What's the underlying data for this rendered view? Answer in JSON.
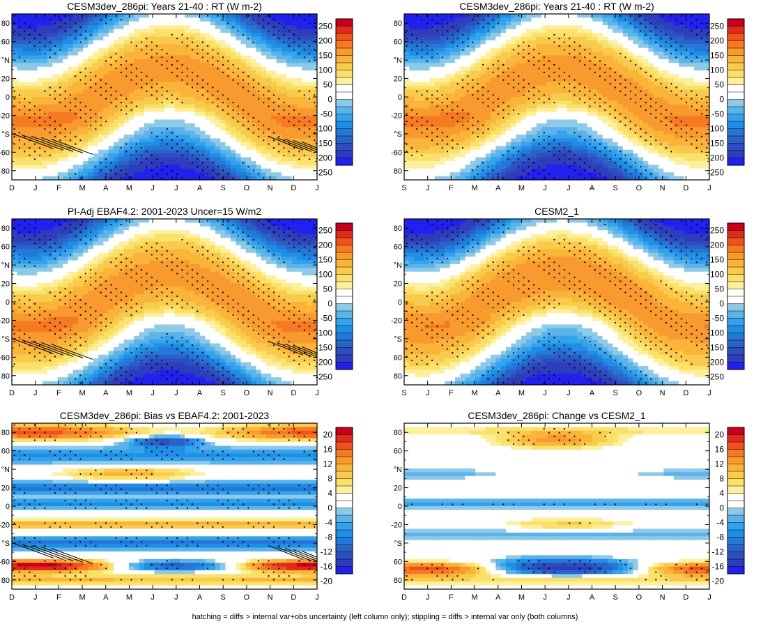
{
  "footnote": "hatching = diffs > internal var+obs uncertainty (left column only); stippling = diffs > internal var only (both columns)",
  "chart_data": [
    {
      "type": "heatmap",
      "title": "CESM3dev_286pi: Years 21-40 : RT (W m-2)",
      "xlabel": "",
      "ylabel": "",
      "x_ticks": [
        "D",
        "J",
        "F",
        "M",
        "A",
        "M",
        "J",
        "J",
        "A",
        "S",
        "O",
        "N",
        "D",
        "J"
      ],
      "y_ticks": [
        "80",
        "60",
        "°N",
        "20",
        "0",
        "-20",
        "°S",
        "-60",
        "80"
      ],
      "ylim": [
        -90,
        90
      ],
      "colorbar_levels": [
        250,
        200,
        150,
        100,
        50,
        0,
        -50,
        -100,
        -150,
        -200,
        -250
      ],
      "field": "net radiation",
      "hatching": true,
      "stippling": true
    },
    {
      "type": "heatmap",
      "title": "CESM3dev_286pi: Years 21-40 : RT (W m-2)",
      "xlabel": "",
      "ylabel": "",
      "x_ticks": [
        "S",
        "J",
        "F",
        "M",
        "A",
        "M",
        "J",
        "J",
        "A",
        "S",
        "O",
        "N",
        "D",
        "J"
      ],
      "y_ticks": [
        "80",
        "60",
        "°N",
        "20",
        "0",
        "-20",
        "°S",
        "-60",
        "80"
      ],
      "ylim": [
        -90,
        90
      ],
      "colorbar_levels": [
        250,
        200,
        150,
        100,
        50,
        0,
        -50,
        -100,
        -150,
        -200,
        -250
      ],
      "field": "net radiation",
      "hatching": false,
      "stippling": true
    },
    {
      "type": "heatmap",
      "title": "PI-Adj EBAF4.2: 2001-2023 Uncer=15 W/m2",
      "xlabel": "",
      "ylabel": "",
      "x_ticks": [
        "D",
        "J",
        "F",
        "M",
        "A",
        "M",
        "J",
        "J",
        "A",
        "S",
        "O",
        "N",
        "D",
        "J"
      ],
      "y_ticks": [
        "80",
        "60",
        "°N",
        "20",
        "0",
        "-20",
        "°S",
        "-60",
        "80"
      ],
      "ylim": [
        -90,
        90
      ],
      "colorbar_levels": [
        250,
        200,
        150,
        100,
        50,
        0,
        -50,
        -100,
        -150,
        -200,
        -250
      ],
      "field": "net radiation",
      "hatching": true,
      "stippling": true
    },
    {
      "type": "heatmap",
      "title": "CESM2_1",
      "xlabel": "",
      "ylabel": "",
      "x_ticks": [
        "S",
        "J",
        "F",
        "M",
        "A",
        "M",
        "J",
        "J",
        "A",
        "S",
        "O",
        "N",
        "D",
        "J"
      ],
      "y_ticks": [
        "80",
        "60",
        "°N",
        "20",
        "0",
        "-20",
        "°S",
        "60",
        "80"
      ],
      "ylim": [
        -90,
        90
      ],
      "colorbar_levels": [
        250,
        200,
        150,
        100,
        50,
        0,
        -50,
        -100,
        -150,
        -200,
        -250
      ],
      "field": "net radiation",
      "hatching": false,
      "stippling": true
    },
    {
      "type": "heatmap",
      "title": "CESM3dev_286pi: Bias vs EBAF4.2: 2001-2023",
      "xlabel": "",
      "ylabel": "",
      "x_ticks": [
        "D",
        "J",
        "F",
        "M",
        "A",
        "M",
        "J",
        "J",
        "A",
        "S",
        "O",
        "N",
        "D",
        "J"
      ],
      "y_ticks": [
        "80",
        "60",
        "°N",
        "20",
        "0",
        "-20",
        "°S",
        "-60",
        "80"
      ],
      "ylim": [
        -90,
        90
      ],
      "colorbar_levels": [
        20,
        16,
        12,
        8,
        4,
        0,
        -4,
        -8,
        -12,
        -16,
        -20
      ],
      "field": "bias",
      "hatching": true,
      "stippling": true
    },
    {
      "type": "heatmap",
      "title": "CESM3dev_286pi: Change vs CESM2_1",
      "xlabel": "",
      "ylabel": "",
      "x_ticks": [
        "D",
        "J",
        "F",
        "M",
        "A",
        "M",
        "J",
        "J",
        "A",
        "S",
        "O",
        "N",
        "D",
        "J"
      ],
      "y_ticks": [
        "80",
        "60",
        "°N",
        "20",
        "0",
        "-20",
        "°S",
        "60",
        "80"
      ],
      "ylim": [
        -90,
        90
      ],
      "colorbar_levels": [
        20,
        16,
        12,
        8,
        4,
        0,
        -4,
        -8,
        -12,
        -16,
        -20
      ],
      "field": "change",
      "hatching": false,
      "stippling": true
    }
  ]
}
